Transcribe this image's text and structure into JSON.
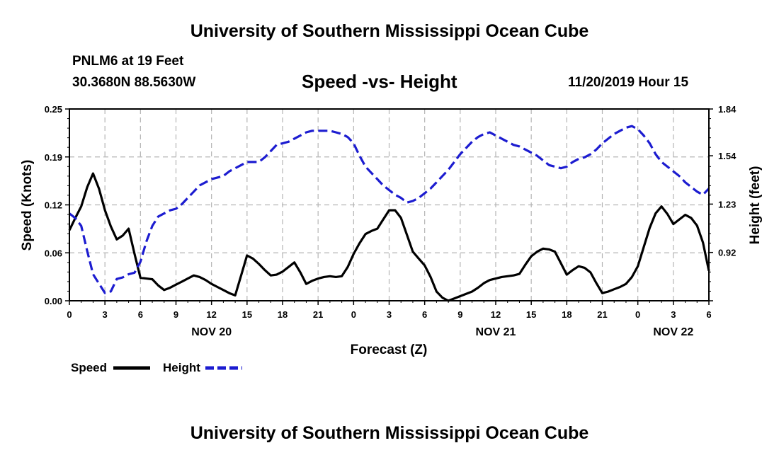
{
  "header": {
    "top_title": "University of Southern Mississippi Ocean Cube",
    "station": "PNLM6 at 19 Feet",
    "coords": "30.3680N 88.5630W",
    "date_hour": "11/20/2019 Hour 15"
  },
  "footer": {
    "bottom_title": "University of Southern Mississippi Ocean Cube"
  },
  "chart_data": {
    "type": "line",
    "title": "Speed -vs- Height",
    "xlabel": "Forecast (Z)",
    "ylabel_left": "Speed (Knots)",
    "ylabel_right": "Height (feet)",
    "x_range": [
      0,
      54
    ],
    "x_tick_values": [
      0,
      3,
      6,
      9,
      12,
      15,
      18,
      21,
      24,
      27,
      30,
      33,
      36,
      39,
      42,
      45,
      48,
      51,
      54
    ],
    "x_tick_labels": [
      "0",
      "3",
      "6",
      "9",
      "12",
      "15",
      "18",
      "21",
      "0",
      "3",
      "6",
      "9",
      "12",
      "15",
      "18",
      "21",
      "0",
      "3",
      "6"
    ],
    "day_labels": [
      {
        "x": 12,
        "label": "NOV 20"
      },
      {
        "x": 36,
        "label": "NOV 21"
      },
      {
        "x": 51,
        "label": "NOV 22"
      }
    ],
    "y_left": {
      "range": [
        0,
        0.25
      ],
      "tick_values": [
        0,
        0.0625,
        0.125,
        0.1875,
        0.25
      ],
      "tick_labels": [
        "0.00",
        "0.06",
        "0.12",
        "0.19",
        "0.25"
      ]
    },
    "y_right": {
      "range": [
        0.61,
        1.84
      ],
      "tick_values": [
        0.61,
        0.92,
        1.23,
        1.54,
        1.84
      ],
      "tick_labels": [
        "",
        "0.92",
        "1.23",
        "1.54",
        "1.84"
      ]
    },
    "grid": true,
    "legend": [
      {
        "name": "Speed",
        "color": "#000000",
        "dash": "solid"
      },
      {
        "name": "Height",
        "color": "#1c1cd0",
        "dash": "dashed"
      }
    ],
    "series": [
      {
        "name": "Speed",
        "axis": "left",
        "color": "#000000",
        "x": [
          0,
          0.5,
          1,
          1.5,
          2,
          2.5,
          3,
          3.5,
          4,
          4.5,
          5,
          5.5,
          6,
          6.5,
          7,
          7.5,
          8,
          8.5,
          9,
          9.5,
          10,
          10.5,
          11,
          11.5,
          12,
          12.5,
          13,
          13.5,
          14,
          14.5,
          15,
          15.5,
          16,
          16.5,
          17,
          17.5,
          18,
          18.5,
          19,
          19.5,
          20,
          20.5,
          21,
          21.5,
          22,
          22.5,
          23,
          23.5,
          24,
          24.5,
          25,
          25.5,
          26,
          26.5,
          27,
          27.5,
          28,
          28.5,
          29,
          29.5,
          30,
          30.5,
          31,
          31.5,
          32,
          32.5,
          33,
          33.5,
          34,
          34.5,
          35,
          35.5,
          36,
          36.5,
          37,
          37.5,
          38,
          38.5,
          39,
          39.5,
          40,
          40.5,
          41,
          41.5,
          42,
          42.5,
          43,
          43.5,
          44,
          44.5,
          45,
          45.5,
          46,
          46.5,
          47,
          47.5,
          48,
          48.5,
          49,
          49.5,
          50,
          50.5,
          51,
          51.5,
          52,
          52.5,
          53,
          53.5,
          54
        ],
        "values": [
          0.092,
          0.108,
          0.123,
          0.148,
          0.166,
          0.146,
          0.118,
          0.097,
          0.08,
          0.085,
          0.094,
          0.061,
          0.03,
          0.029,
          0.028,
          0.02,
          0.014,
          0.017,
          0.021,
          0.025,
          0.029,
          0.033,
          0.031,
          0.027,
          0.022,
          0.018,
          0.014,
          0.01,
          0.007,
          0.033,
          0.059,
          0.055,
          0.048,
          0.04,
          0.033,
          0.034,
          0.038,
          0.044,
          0.05,
          0.037,
          0.022,
          0.026,
          0.029,
          0.031,
          0.032,
          0.031,
          0.032,
          0.044,
          0.061,
          0.075,
          0.087,
          0.091,
          0.094,
          0.106,
          0.118,
          0.118,
          0.108,
          0.086,
          0.064,
          0.055,
          0.046,
          0.031,
          0.012,
          0.004,
          0.0,
          0.003,
          0.006,
          0.009,
          0.012,
          0.017,
          0.023,
          0.027,
          0.029,
          0.031,
          0.032,
          0.033,
          0.035,
          0.047,
          0.058,
          0.064,
          0.068,
          0.067,
          0.064,
          0.049,
          0.034,
          0.04,
          0.045,
          0.043,
          0.037,
          0.023,
          0.01,
          0.012,
          0.015,
          0.018,
          0.022,
          0.031,
          0.045,
          0.07,
          0.095,
          0.114,
          0.123,
          0.113,
          0.1,
          0.106,
          0.112,
          0.108,
          0.098,
          0.076,
          0.039
        ]
      },
      {
        "name": "Height",
        "axis": "right",
        "color": "#1c1cd0",
        "x": [
          0,
          0.5,
          1,
          1.5,
          2,
          2.5,
          3,
          3.5,
          4,
          4.5,
          5,
          5.5,
          6,
          6.5,
          7,
          7.5,
          8,
          8.5,
          9,
          9.5,
          10,
          10.5,
          11,
          11.5,
          12,
          12.5,
          13,
          13.5,
          14,
          14.5,
          15,
          15.5,
          16,
          16.5,
          17,
          17.5,
          18,
          18.5,
          19,
          19.5,
          20,
          20.5,
          21,
          21.5,
          22,
          22.5,
          23,
          23.5,
          24,
          24.5,
          25,
          25.5,
          26,
          26.5,
          27,
          27.5,
          28,
          28.5,
          29,
          29.5,
          30,
          30.5,
          31,
          31.5,
          32,
          32.5,
          33,
          33.5,
          34,
          34.5,
          35,
          35.5,
          36,
          36.5,
          37,
          37.5,
          38,
          38.5,
          39,
          39.5,
          40,
          40.5,
          41,
          41.5,
          42,
          42.5,
          43,
          43.5,
          44,
          44.5,
          45,
          45.5,
          46,
          46.5,
          47,
          47.5,
          48,
          48.5,
          49,
          49.5,
          50,
          50.5,
          51,
          51.5,
          52,
          52.5,
          53,
          53.5,
          54
        ],
        "values": [
          1.17,
          1.14,
          1.09,
          0.93,
          0.78,
          0.72,
          0.66,
          0.67,
          0.75,
          0.76,
          0.78,
          0.79,
          0.86,
          0.99,
          1.09,
          1.15,
          1.17,
          1.19,
          1.2,
          1.23,
          1.27,
          1.31,
          1.35,
          1.37,
          1.39,
          1.4,
          1.41,
          1.44,
          1.46,
          1.48,
          1.5,
          1.5,
          1.5,
          1.53,
          1.57,
          1.61,
          1.62,
          1.63,
          1.65,
          1.67,
          1.69,
          1.7,
          1.7,
          1.7,
          1.7,
          1.69,
          1.68,
          1.66,
          1.62,
          1.54,
          1.47,
          1.43,
          1.39,
          1.35,
          1.32,
          1.29,
          1.27,
          1.24,
          1.25,
          1.27,
          1.3,
          1.33,
          1.37,
          1.41,
          1.45,
          1.5,
          1.55,
          1.59,
          1.63,
          1.66,
          1.68,
          1.69,
          1.67,
          1.65,
          1.63,
          1.61,
          1.6,
          1.58,
          1.56,
          1.54,
          1.51,
          1.48,
          1.47,
          1.46,
          1.47,
          1.5,
          1.52,
          1.53,
          1.55,
          1.58,
          1.62,
          1.65,
          1.68,
          1.7,
          1.72,
          1.73,
          1.71,
          1.67,
          1.62,
          1.55,
          1.5,
          1.47,
          1.44,
          1.41,
          1.37,
          1.34,
          1.31,
          1.29,
          1.33
        ]
      }
    ]
  }
}
